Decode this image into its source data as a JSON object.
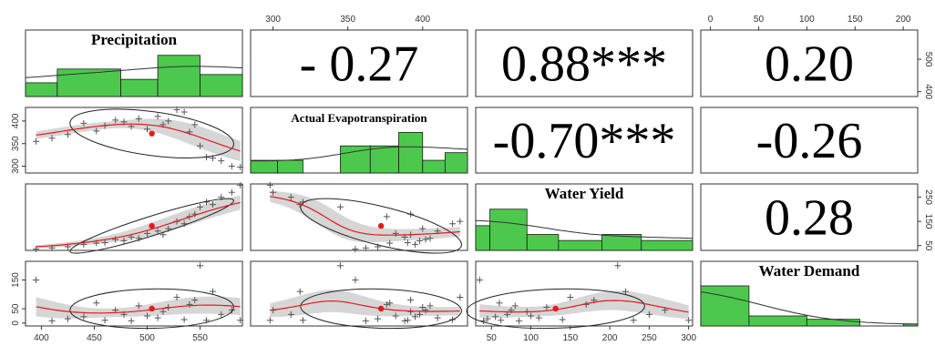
{
  "chart_data": {
    "type": "scatter",
    "variables": [
      "Precipitation",
      "Actual Evapotranspiration",
      "Water Yield",
      "Water Demand"
    ],
    "correlations": [
      {
        "row": 0,
        "col": 1,
        "label": "- 0.27",
        "value": -0.27
      },
      {
        "row": 0,
        "col": 2,
        "label": "0.88***",
        "value": 0.88
      },
      {
        "row": 0,
        "col": 3,
        "label": "0.20",
        "value": 0.2
      },
      {
        "row": 1,
        "col": 2,
        "label": "-0.70***",
        "value": -0.7
      },
      {
        "row": 1,
        "col": 3,
        "label": "-0.26",
        "value": -0.26
      },
      {
        "row": 2,
        "col": 3,
        "label": "0.28",
        "value": 0.28
      }
    ],
    "ranges": {
      "Precipitation": [
        385,
        590
      ],
      "Actual Evapotranspiration": [
        285,
        430
      ],
      "Water Yield": [
        30,
        305
      ],
      "Water Demand": [
        -10,
        215
      ]
    },
    "bottom_ticks": [
      {
        "col": 0,
        "labels": [
          "400",
          "450",
          "500",
          "550"
        ],
        "values": [
          400,
          450,
          500,
          550
        ]
      },
      {
        "col": 2,
        "labels": [
          "50",
          "100",
          "150",
          "200",
          "250",
          "300"
        ],
        "values": [
          50,
          100,
          150,
          200,
          250,
          300
        ]
      }
    ],
    "top_ticks": [
      {
        "col": 1,
        "labels": [
          "300",
          "350",
          "400"
        ],
        "values": [
          300,
          350,
          400
        ]
      },
      {
        "col": 3,
        "labels": [
          "0",
          "50",
          "100",
          "150",
          "200"
        ],
        "values": [
          0,
          50,
          100,
          150,
          200
        ]
      }
    ],
    "left_ticks": [
      {
        "row": 1,
        "labels": [
          "300",
          "350",
          "400"
        ],
        "values": [
          300,
          350,
          400
        ]
      },
      {
        "row": 3,
        "labels": [
          "0",
          "50",
          "150"
        ],
        "values": [
          0,
          50,
          150
        ]
      }
    ],
    "right_ticks": [
      {
        "row": 0,
        "labels": [
          "400",
          "500"
        ],
        "values": [
          400,
          500
        ]
      },
      {
        "row": 2,
        "labels": [
          "50",
          "150",
          "250"
        ],
        "values": [
          50,
          150,
          250
        ]
      }
    ],
    "histograms": {
      "Precipitation": {
        "breaks": [
          385,
          415,
          475,
          510,
          550,
          590
        ],
        "counts": [
          2,
          4,
          2.5,
          6,
          3.2
        ]
      },
      "Actual Evapotranspiration": {
        "breaks": [
          285,
          303,
          320,
          345,
          365,
          384,
          400,
          415,
          430
        ],
        "counts": [
          1.5,
          1.5,
          0,
          3.2,
          3.2,
          4.8,
          1.5,
          2.4
        ]
      },
      "Water Yield": {
        "breaks": [
          30,
          48,
          95,
          135,
          190,
          240,
          305
        ],
        "counts": [
          4.5,
          7.5,
          2.9,
          1.8,
          2.9,
          1.8
        ]
      },
      "Water Demand": {
        "breaks": [
          -10,
          40,
          100,
          155,
          200,
          215
        ],
        "counts": [
          6,
          1.5,
          1,
          0,
          0.3
        ]
      }
    },
    "points": {
      "Precipitation": [
        395,
        410,
        425,
        440,
        452,
        460,
        470,
        478,
        485,
        492,
        500,
        510,
        515,
        520,
        528,
        535,
        540,
        545,
        550,
        556,
        562,
        570,
        580,
        588
      ],
      "Actual Evapotranspiration": [
        355,
        362,
        370,
        395,
        378,
        390,
        402,
        398,
        388,
        405,
        382,
        410,
        392,
        400,
        425,
        420,
        376,
        392,
        345,
        320,
        318,
        312,
        300,
        298
      ],
      "Water Yield": [
        35,
        40,
        45,
        55,
        60,
        62,
        75,
        70,
        85,
        80,
        100,
        110,
        95,
        120,
        150,
        140,
        170,
        180,
        210,
        230,
        220,
        250,
        270,
        300
      ],
      "Water Demand": [
        150,
        8,
        15,
        22,
        70,
        10,
        45,
        30,
        8,
        60,
        25,
        18,
        40,
        55,
        90,
        12,
        65,
        80,
        200,
        10,
        110,
        30,
        45,
        10
      ]
    },
    "grid": false,
    "legend": "none"
  }
}
